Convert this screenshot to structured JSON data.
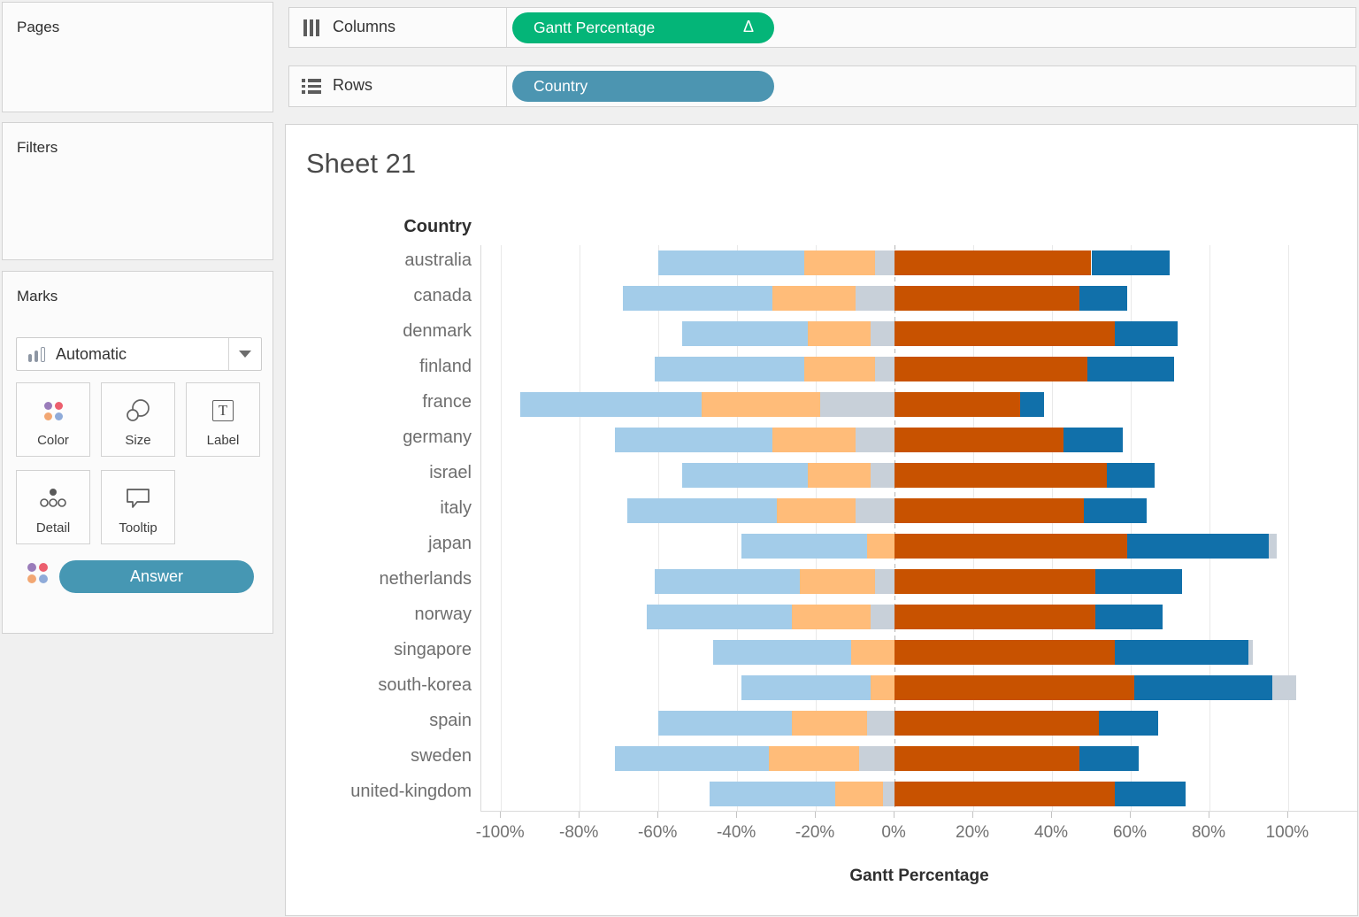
{
  "panels": {
    "pages": "Pages",
    "filters": "Filters",
    "marks": "Marks"
  },
  "shelves": {
    "columns": {
      "label": "Columns",
      "pill": "Gantt Percentage",
      "delta": "Δ",
      "pill_color": "#04b578"
    },
    "rows": {
      "label": "Rows",
      "pill": "Country",
      "pill_color": "#4c95b1"
    }
  },
  "marks_card": {
    "mark_type": "Automatic",
    "buttons": [
      "Color",
      "Size",
      "Label",
      "Detail",
      "Tooltip"
    ],
    "legend_pill": "Answer",
    "legend_dot_colors": [
      "#9a7cba",
      "#ec5f6e",
      "#f2a773",
      "#8fabd9"
    ]
  },
  "sheet": {
    "title": "Sheet 21"
  },
  "chart_data": {
    "type": "bar",
    "subtype": "diverging-stacked-likert",
    "title": "Sheet 21",
    "row_header": "Country",
    "xlabel": "Gantt Percentage",
    "axis_ticks": [
      -100,
      -80,
      -60,
      -40,
      -20,
      0,
      20,
      40,
      60,
      80,
      100
    ],
    "axis_min": -105,
    "axis_max": 118,
    "grid": true,
    "colors": {
      "light_blue": "#a3cce9",
      "light_orange": "#ffbc79",
      "gray": "#c8d0d9",
      "dark_orange": "#c85200",
      "dark_blue": "#1170aa"
    },
    "categories": [
      "australia",
      "canada",
      "denmark",
      "finland",
      "france",
      "germany",
      "israel",
      "italy",
      "japan",
      "netherlands",
      "norway",
      "singapore",
      "south-korea",
      "spain",
      "sweden",
      "united-kingdom"
    ],
    "rows": [
      {
        "country": "australia",
        "segments": [
          {
            "c": "light_blue",
            "f": -60,
            "t": -23
          },
          {
            "c": "light_orange",
            "f": -23,
            "t": -5
          },
          {
            "c": "gray",
            "f": -5,
            "t": 0
          },
          {
            "c": "dark_orange",
            "f": 0,
            "t": 50
          },
          {
            "c": "dark_blue",
            "f": 50,
            "t": 70
          }
        ]
      },
      {
        "country": "canada",
        "segments": [
          {
            "c": "light_blue",
            "f": -69,
            "t": -31
          },
          {
            "c": "light_orange",
            "f": -31,
            "t": -10
          },
          {
            "c": "gray",
            "f": -10,
            "t": 0
          },
          {
            "c": "dark_orange",
            "f": 0,
            "t": 47
          },
          {
            "c": "dark_blue",
            "f": 47,
            "t": 59
          }
        ]
      },
      {
        "country": "denmark",
        "segments": [
          {
            "c": "light_blue",
            "f": -54,
            "t": -22
          },
          {
            "c": "light_orange",
            "f": -22,
            "t": -6
          },
          {
            "c": "gray",
            "f": -6,
            "t": 0
          },
          {
            "c": "dark_orange",
            "f": 0,
            "t": 56
          },
          {
            "c": "dark_blue",
            "f": 56,
            "t": 72
          }
        ]
      },
      {
        "country": "finland",
        "segments": [
          {
            "c": "light_blue",
            "f": -61,
            "t": -23
          },
          {
            "c": "light_orange",
            "f": -23,
            "t": -5
          },
          {
            "c": "gray",
            "f": -5,
            "t": 0
          },
          {
            "c": "dark_orange",
            "f": 0,
            "t": 49
          },
          {
            "c": "dark_blue",
            "f": 49,
            "t": 71
          }
        ]
      },
      {
        "country": "france",
        "segments": [
          {
            "c": "light_blue",
            "f": -95,
            "t": -49
          },
          {
            "c": "light_orange",
            "f": -49,
            "t": -19
          },
          {
            "c": "gray",
            "f": -19,
            "t": 0
          },
          {
            "c": "dark_orange",
            "f": 0,
            "t": 32
          },
          {
            "c": "dark_blue",
            "f": 32,
            "t": 38
          }
        ]
      },
      {
        "country": "germany",
        "segments": [
          {
            "c": "light_blue",
            "f": -71,
            "t": -31
          },
          {
            "c": "light_orange",
            "f": -31,
            "t": -10
          },
          {
            "c": "gray",
            "f": -10,
            "t": 0
          },
          {
            "c": "dark_orange",
            "f": 0,
            "t": 43
          },
          {
            "c": "dark_blue",
            "f": 43,
            "t": 58
          }
        ]
      },
      {
        "country": "israel",
        "segments": [
          {
            "c": "light_blue",
            "f": -54,
            "t": -22
          },
          {
            "c": "light_orange",
            "f": -22,
            "t": -6
          },
          {
            "c": "gray",
            "f": -6,
            "t": 0
          },
          {
            "c": "dark_orange",
            "f": 0,
            "t": 54
          },
          {
            "c": "dark_blue",
            "f": 54,
            "t": 66
          }
        ]
      },
      {
        "country": "italy",
        "segments": [
          {
            "c": "light_blue",
            "f": -68,
            "t": -30
          },
          {
            "c": "light_orange",
            "f": -30,
            "t": -10
          },
          {
            "c": "gray",
            "f": -10,
            "t": 0
          },
          {
            "c": "dark_orange",
            "f": 0,
            "t": 48
          },
          {
            "c": "dark_blue",
            "f": 48,
            "t": 64
          }
        ]
      },
      {
        "country": "japan",
        "segments": [
          {
            "c": "light_blue",
            "f": -39,
            "t": -7
          },
          {
            "c": "light_orange",
            "f": -7,
            "t": 0
          },
          {
            "c": "dark_orange",
            "f": 0,
            "t": 59
          },
          {
            "c": "dark_blue",
            "f": 59,
            "t": 95
          },
          {
            "c": "gray",
            "f": 95,
            "t": 97
          }
        ]
      },
      {
        "country": "netherlands",
        "segments": [
          {
            "c": "light_blue",
            "f": -61,
            "t": -24
          },
          {
            "c": "light_orange",
            "f": -24,
            "t": -5
          },
          {
            "c": "gray",
            "f": -5,
            "t": 0
          },
          {
            "c": "dark_orange",
            "f": 0,
            "t": 51
          },
          {
            "c": "dark_blue",
            "f": 51,
            "t": 73
          }
        ]
      },
      {
        "country": "norway",
        "segments": [
          {
            "c": "light_blue",
            "f": -63,
            "t": -26
          },
          {
            "c": "light_orange",
            "f": -26,
            "t": -6
          },
          {
            "c": "gray",
            "f": -6,
            "t": 0
          },
          {
            "c": "dark_orange",
            "f": 0,
            "t": 51
          },
          {
            "c": "dark_blue",
            "f": 51,
            "t": 68
          }
        ]
      },
      {
        "country": "singapore",
        "segments": [
          {
            "c": "light_blue",
            "f": -46,
            "t": -11
          },
          {
            "c": "light_orange",
            "f": -11,
            "t": 0
          },
          {
            "c": "dark_orange",
            "f": 0,
            "t": 56
          },
          {
            "c": "dark_blue",
            "f": 56,
            "t": 90
          },
          {
            "c": "gray",
            "f": 90,
            "t": 91
          }
        ]
      },
      {
        "country": "south-korea",
        "segments": [
          {
            "c": "light_blue",
            "f": -39,
            "t": -6
          },
          {
            "c": "light_orange",
            "f": -6,
            "t": 0
          },
          {
            "c": "dark_orange",
            "f": 0,
            "t": 61
          },
          {
            "c": "dark_blue",
            "f": 61,
            "t": 96
          },
          {
            "c": "gray",
            "f": 96,
            "t": 102
          }
        ]
      },
      {
        "country": "spain",
        "segments": [
          {
            "c": "light_blue",
            "f": -60,
            "t": -26
          },
          {
            "c": "light_orange",
            "f": -26,
            "t": -7
          },
          {
            "c": "gray",
            "f": -7,
            "t": 0
          },
          {
            "c": "dark_orange",
            "f": 0,
            "t": 52
          },
          {
            "c": "dark_blue",
            "f": 52,
            "t": 67
          }
        ]
      },
      {
        "country": "sweden",
        "segments": [
          {
            "c": "light_blue",
            "f": -71,
            "t": -32
          },
          {
            "c": "light_orange",
            "f": -32,
            "t": -9
          },
          {
            "c": "gray",
            "f": -9,
            "t": 0
          },
          {
            "c": "dark_orange",
            "f": 0,
            "t": 47
          },
          {
            "c": "dark_blue",
            "f": 47,
            "t": 62
          }
        ]
      },
      {
        "country": "united-kingdom",
        "segments": [
          {
            "c": "light_blue",
            "f": -47,
            "t": -15
          },
          {
            "c": "light_orange",
            "f": -15,
            "t": -3
          },
          {
            "c": "gray",
            "f": -3,
            "t": 0
          },
          {
            "c": "dark_orange",
            "f": 0,
            "t": 56
          },
          {
            "c": "dark_blue",
            "f": 56,
            "t": 74
          }
        ]
      }
    ]
  }
}
